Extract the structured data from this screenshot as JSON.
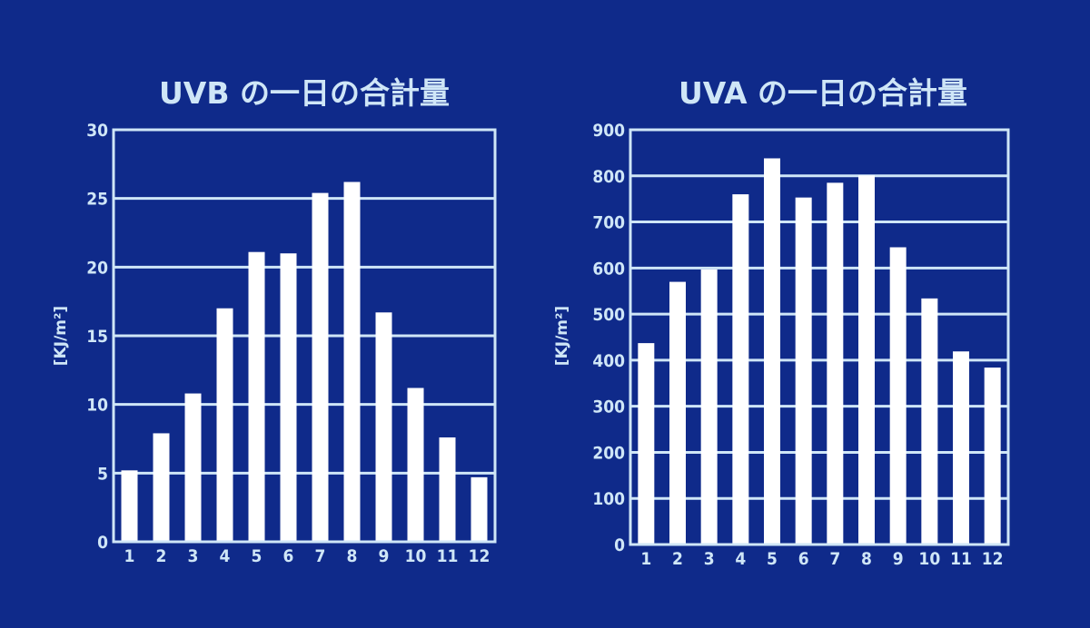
{
  "colors": {
    "background": "#0f2a8a",
    "text": "#cfe6f7",
    "bars": "#ffffff"
  },
  "chart_data": [
    {
      "type": "bar",
      "title": "UVB の一日の合計量",
      "ylabel": "[KJ/m²]",
      "categories": [
        "1",
        "2",
        "3",
        "4",
        "5",
        "6",
        "7",
        "8",
        "9",
        "10",
        "11",
        "12"
      ],
      "values": [
        5.2,
        7.9,
        10.8,
        17,
        21.1,
        21.0,
        25.4,
        26.2,
        16.7,
        11.2,
        7.6,
        4.7
      ],
      "ylim": [
        0,
        30
      ],
      "yticks": [
        0,
        5,
        10,
        15,
        20,
        25,
        30
      ],
      "grid": true
    },
    {
      "type": "bar",
      "title": "UVA の一日の合計量",
      "ylabel": "[KJ/m²]",
      "categories": [
        "1",
        "2",
        "3",
        "4",
        "5",
        "6",
        "7",
        "8",
        "9",
        "10",
        "11",
        "12"
      ],
      "values": [
        437,
        570,
        597,
        760,
        838,
        753,
        785,
        801,
        645,
        534,
        419,
        384
      ],
      "ylim": [
        0,
        900
      ],
      "yticks": [
        0,
        100,
        200,
        300,
        400,
        500,
        600,
        700,
        800,
        900
      ],
      "grid": true
    }
  ]
}
